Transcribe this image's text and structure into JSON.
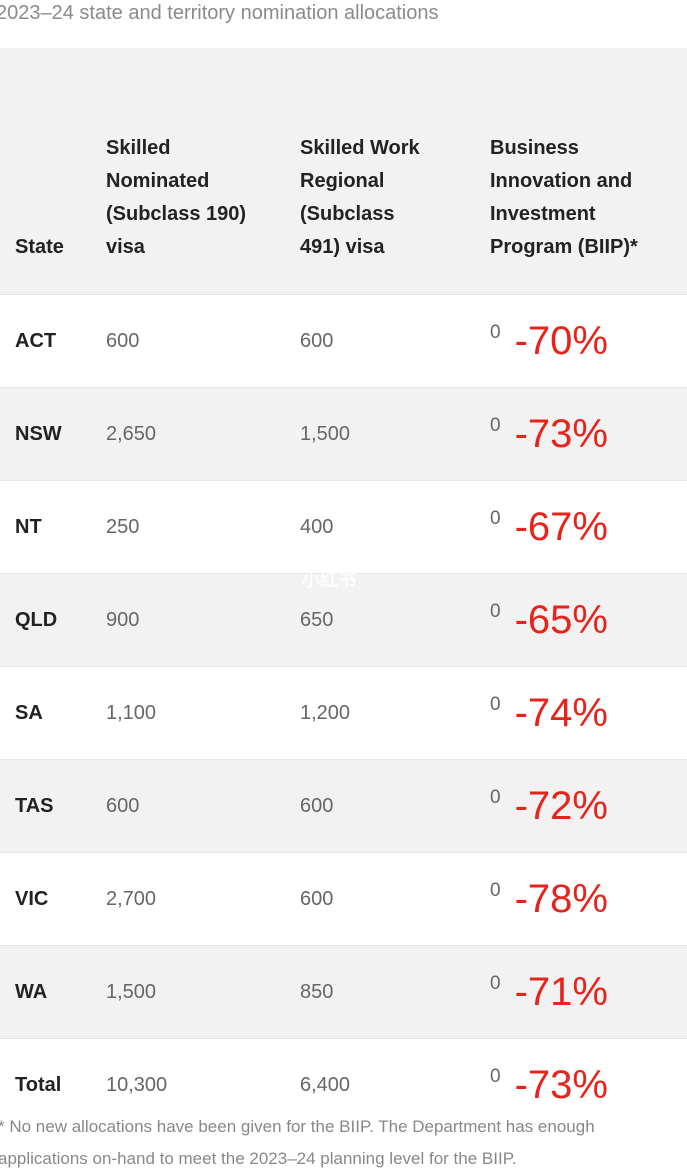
{
  "caption": "2023–24 state and territory nomination allocations",
  "headers": {
    "state": "State",
    "c190": [
      "Skilled",
      "Nominated",
      "(Subclass 190)",
      "visa"
    ],
    "c491": [
      "Skilled Work",
      "Regional",
      "(Subclass",
      "491) visa"
    ],
    "biip": [
      "Business",
      "Innovation and",
      "Investment",
      "Program (BIIP)*"
    ]
  },
  "rows": [
    {
      "state": "ACT",
      "v190": "600",
      "v491": "600",
      "biip": "0",
      "change": "-70%"
    },
    {
      "state": "NSW",
      "v190": "2,650",
      "v491": "1,500",
      "biip": "0",
      "change": "-73%"
    },
    {
      "state": "NT",
      "v190": "250",
      "v491": "400",
      "biip": "0",
      "change": "-67%"
    },
    {
      "state": "QLD",
      "v190": "900",
      "v491": "650",
      "biip": "0",
      "change": "-65%"
    },
    {
      "state": "SA",
      "v190": "1,100",
      "v491": "1,200",
      "biip": "0",
      "change": "-74%"
    },
    {
      "state": "TAS",
      "v190": "600",
      "v491": "600",
      "biip": "0",
      "change": "-72%"
    },
    {
      "state": "VIC",
      "v190": "2,700",
      "v491": "600",
      "biip": "0",
      "change": "-78%"
    },
    {
      "state": "WA",
      "v190": "1,500",
      "v491": "850",
      "biip": "0",
      "change": "-71%"
    },
    {
      "state": "Total",
      "v190": "10,300",
      "v491": "6,400",
      "biip": "0",
      "change": "-73%"
    }
  ],
  "footnote": [
    "* No new allocations have been given for the BIIP. The Department has enough",
    "applications on-hand to meet the 2023–24 planning level for the BIIP."
  ],
  "watermark": "小红书",
  "colors": {
    "accent_red": "#e8231b",
    "stripe": "#f2f2f2"
  }
}
